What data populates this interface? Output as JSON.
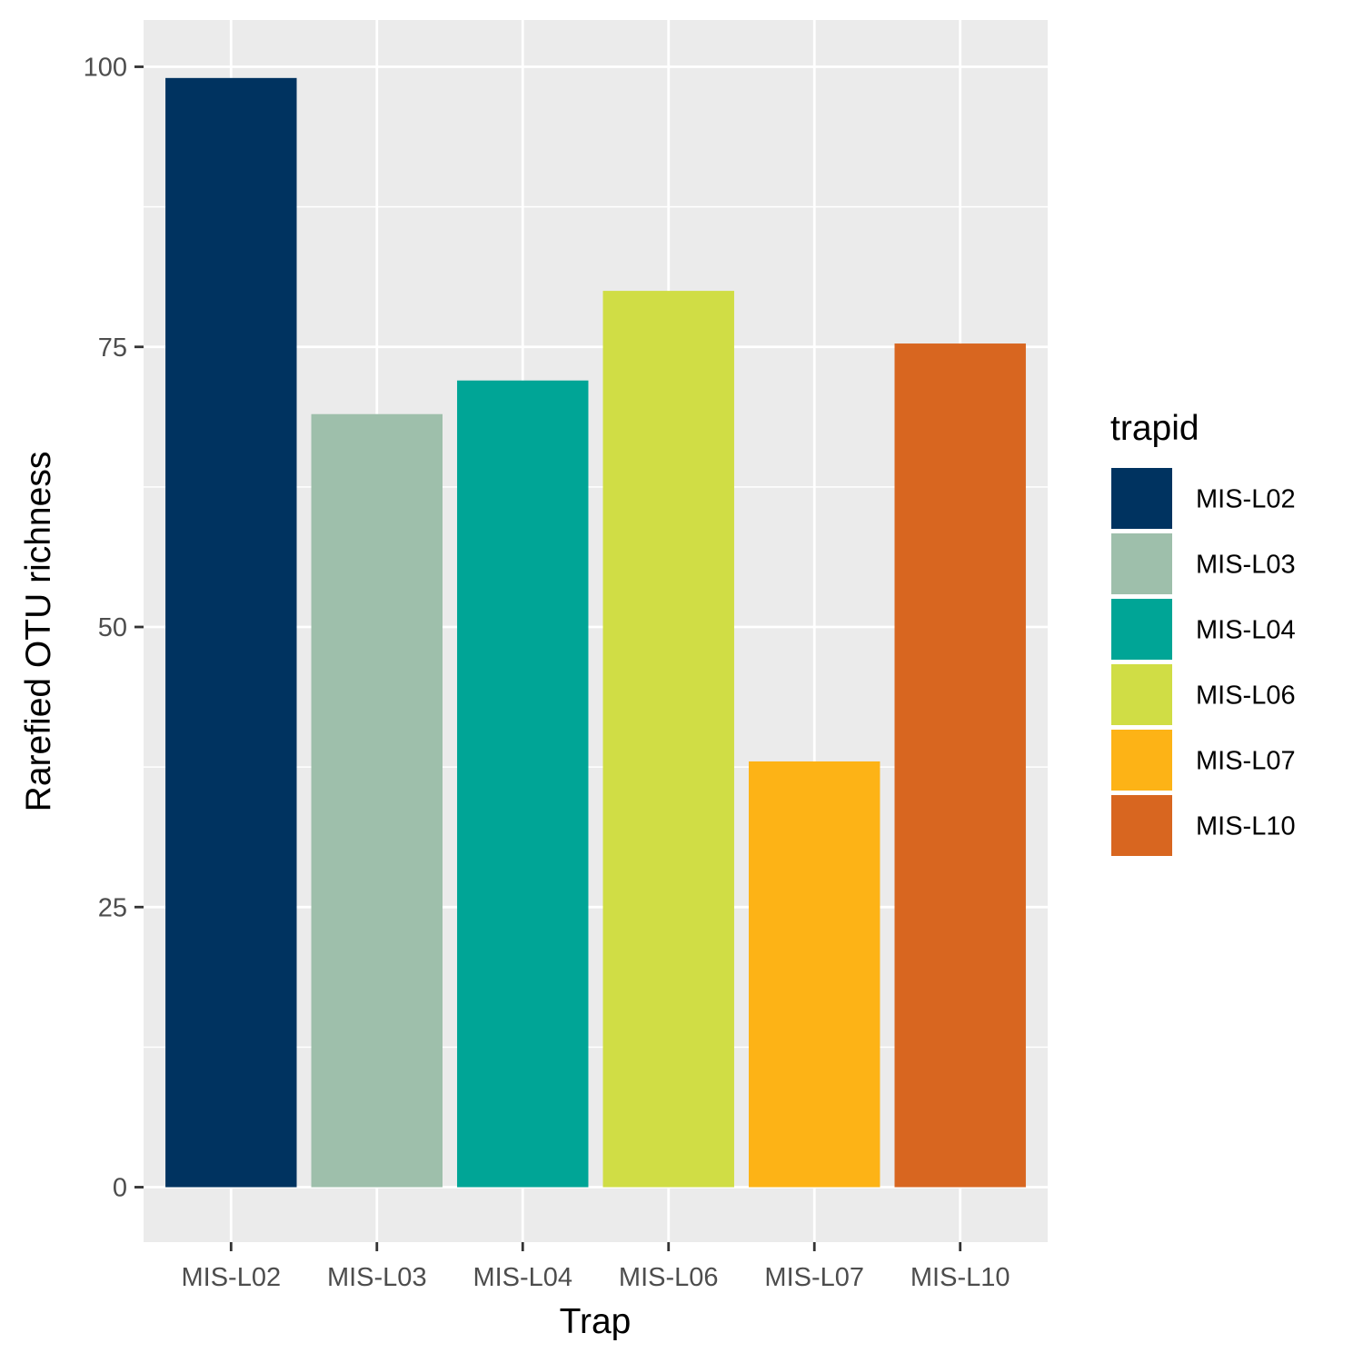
{
  "chart_data": {
    "type": "bar",
    "categories": [
      "MIS-L02",
      "MIS-L03",
      "MIS-L04",
      "MIS-L06",
      "MIS-L07",
      "MIS-L10"
    ],
    "values": [
      99,
      69,
      72,
      80,
      38,
      75.3
    ],
    "colors": [
      "#003360",
      "#9ebfab",
      "#00a596",
      "#d0dd45",
      "#fdb316",
      "#d86620"
    ],
    "xlabel": "Trap",
    "ylabel": "Rarefied OTU richness",
    "ylim": [
      -4.9,
      104
    ],
    "yticks": [
      0,
      25,
      50,
      75,
      100
    ],
    "y_minor_ticks": [
      12.5,
      37.5,
      62.5,
      87.5
    ],
    "grid": true,
    "panel_background": "#ebebeb",
    "legend": {
      "title": "trapid",
      "position": "right",
      "entries": [
        "MIS-L02",
        "MIS-L03",
        "MIS-L04",
        "MIS-L06",
        "MIS-L07",
        "MIS-L10"
      ]
    }
  }
}
